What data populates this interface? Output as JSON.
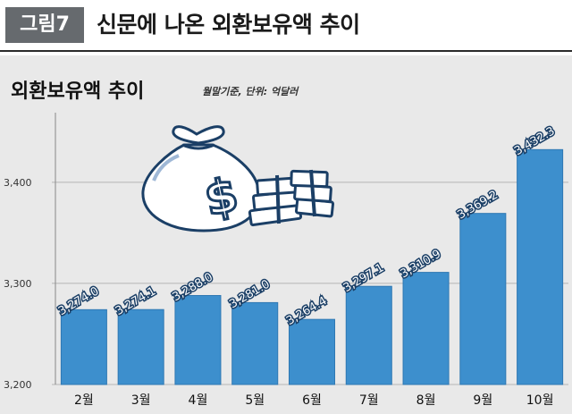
{
  "header": {
    "badge": "그림7",
    "title": "신문에 나온 외환보유액 추이"
  },
  "colors": {
    "bar": "#3d8fcd",
    "bar_dark": "#2f78b3",
    "icon_stroke": "#1b3f66",
    "icon_fill": "#ffffff"
  },
  "icons": [
    "money-bag-icon",
    "cash-stack-icon"
  ],
  "chart_data": {
    "type": "bar",
    "title": "외환보유액 추이",
    "note": "월말기준, 단위: 억달러",
    "categories": [
      "2월",
      "3월",
      "4월",
      "5월",
      "6월",
      "7월",
      "8월",
      "9월",
      "10월"
    ],
    "values": [
      3274.0,
      3274.1,
      3288.0,
      3281.0,
      3264.4,
      3297.1,
      3310.9,
      3369.2,
      3432.3
    ],
    "value_labels": [
      "3,274.0",
      "3,274.1",
      "3,288.0",
      "3,281.0",
      "3,264.4",
      "3,297.1",
      "3,310.9",
      "3,369.2",
      "3,432.3"
    ],
    "ylim": [
      3200,
      3460
    ],
    "yticks": [
      3200,
      3300,
      3400
    ],
    "ytick_labels": [
      "3,200",
      "3,300",
      "3,400"
    ],
    "grid": true,
    "xlabel": "",
    "ylabel": ""
  }
}
